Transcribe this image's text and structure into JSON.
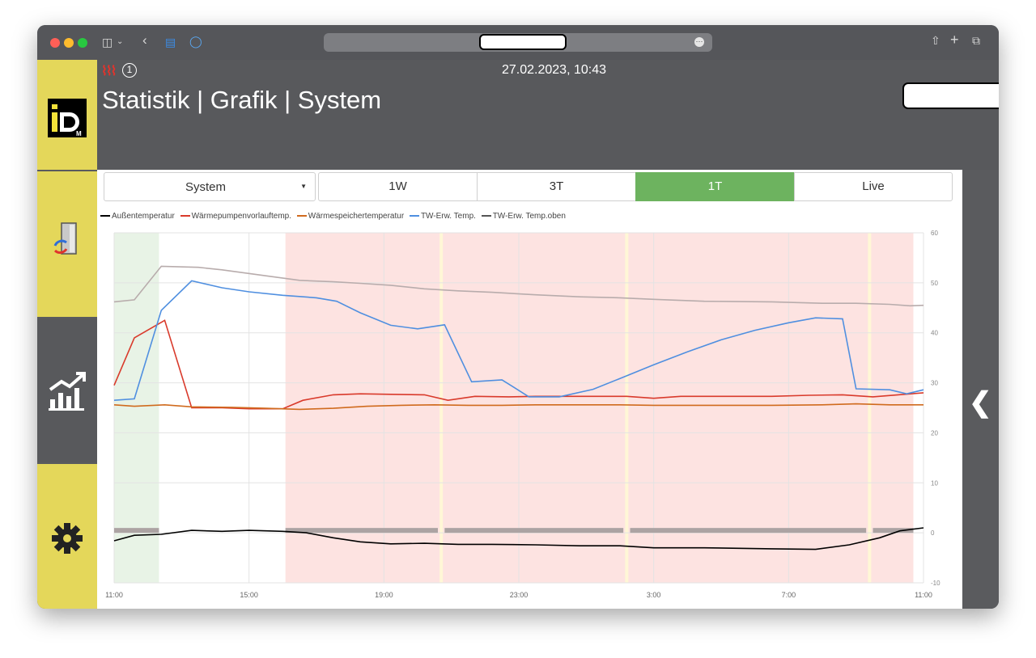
{
  "browser": {
    "traffic_lights": [
      "#fe5f57",
      "#febc2e",
      "#28c840"
    ],
    "icons": [
      "sidebar-toggle-icon",
      "chevron-down-icon",
      "back-icon",
      "reader-icon",
      "shield-icon",
      "share-icon",
      "new-tab-icon",
      "tabs-icon"
    ]
  },
  "header": {
    "radiator_icon": "heater-icon",
    "notification_count": "1",
    "datetime": "27.02.2023, 10:43",
    "title": "Statistik | Grafik | System"
  },
  "sidebar": {
    "items": [
      {
        "name": "logo",
        "label": "iD M"
      },
      {
        "name": "door-sync-icon"
      },
      {
        "name": "statistics-icon"
      },
      {
        "name": "settings-icon"
      }
    ]
  },
  "controls": {
    "system_select": "System",
    "tabs": [
      "1W",
      "3T",
      "1T",
      "Live"
    ],
    "active_tab": "1T"
  },
  "colors": {
    "active_tab": "#6db35f",
    "sidebar_yellow": "#e4d75a",
    "sidebar_dark": "#58595c"
  },
  "chart_data": {
    "type": "line",
    "legend": [
      {
        "name": "Außentemperatur",
        "color": "#000000"
      },
      {
        "name": "Wärmepumpenvorlauftemp.",
        "color": "#d93a2b"
      },
      {
        "name": "Wärmespeichertemperatur",
        "color": "#d06b1e"
      },
      {
        "name": "TW-Erw. Temp.",
        "color": "#4f8fe0"
      },
      {
        "name": "TW-Erw. Temp.oben",
        "color": "#b8acac"
      }
    ],
    "x_ticks": [
      "11:00",
      "15:00",
      "19:00",
      "23:00",
      "3:00",
      "7:00",
      "11:00"
    ],
    "x_tick_hours": [
      0,
      4,
      8,
      12,
      16,
      20,
      24
    ],
    "xlim": [
      0,
      24
    ],
    "y_ticks": [
      60,
      50,
      40,
      30,
      20,
      10,
      0,
      -10
    ],
    "ylim": [
      -10,
      60
    ],
    "grid": true,
    "bands": [
      {
        "start": 0,
        "end": 1.33,
        "color": "#e8f3e6"
      },
      {
        "start": 5.08,
        "end": 23.7,
        "color": "#fde3e1"
      }
    ],
    "band_gaps": [
      9.7,
      15.2,
      22.4
    ],
    "series": [
      {
        "name": "Außentemperatur",
        "color": "#000000",
        "points": [
          [
            0,
            -1.6
          ],
          [
            0.6,
            -0.5
          ],
          [
            1.4,
            -0.3
          ],
          [
            2.3,
            0.5
          ],
          [
            3.2,
            0.3
          ],
          [
            4.0,
            0.5
          ],
          [
            5.0,
            0.3
          ],
          [
            5.7,
            0
          ],
          [
            6.5,
            -1.0
          ],
          [
            7.3,
            -1.8
          ],
          [
            8.2,
            -2.2
          ],
          [
            9.2,
            -2.1
          ],
          [
            10.2,
            -2.3
          ],
          [
            11.2,
            -2.3
          ],
          [
            12.5,
            -2.4
          ],
          [
            13.8,
            -2.6
          ],
          [
            15.0,
            -2.6
          ],
          [
            16.0,
            -3.0
          ],
          [
            17.5,
            -3.0
          ],
          [
            19.5,
            -3.2
          ],
          [
            20.8,
            -3.3
          ],
          [
            21.8,
            -2.4
          ],
          [
            22.7,
            -1.0
          ],
          [
            23.3,
            0.4
          ],
          [
            24,
            1.0
          ]
        ]
      },
      {
        "name": "Wärmepumpenvorlauftemp.",
        "color": "#d93a2b",
        "points": [
          [
            0,
            29.5
          ],
          [
            0.6,
            39.0
          ],
          [
            1.5,
            42.5
          ],
          [
            2.3,
            25.0
          ],
          [
            3.2,
            25.0
          ],
          [
            4.0,
            24.8
          ],
          [
            5.0,
            24.8
          ],
          [
            5.6,
            26.5
          ],
          [
            6.5,
            27.6
          ],
          [
            7.3,
            27.8
          ],
          [
            8.2,
            27.7
          ],
          [
            9.2,
            27.6
          ],
          [
            9.9,
            26.5
          ],
          [
            10.7,
            27.3
          ],
          [
            11.7,
            27.2
          ],
          [
            12.5,
            27.3
          ],
          [
            13.5,
            27.3
          ],
          [
            15.2,
            27.3
          ],
          [
            16.0,
            26.9
          ],
          [
            16.8,
            27.3
          ],
          [
            19.5,
            27.3
          ],
          [
            20.6,
            27.5
          ],
          [
            21.6,
            27.6
          ],
          [
            22.5,
            27.2
          ],
          [
            24,
            28.0
          ]
        ]
      },
      {
        "name": "Wärmespeichertemperatur",
        "color": "#d06b1e",
        "points": [
          [
            0,
            25.6
          ],
          [
            0.6,
            25.3
          ],
          [
            1.5,
            25.6
          ],
          [
            2.3,
            25.2
          ],
          [
            3.5,
            25.1
          ],
          [
            4.5,
            24.9
          ],
          [
            5.5,
            24.7
          ],
          [
            6.5,
            24.9
          ],
          [
            7.5,
            25.3
          ],
          [
            8.5,
            25.5
          ],
          [
            9.5,
            25.6
          ],
          [
            10.5,
            25.5
          ],
          [
            11.5,
            25.5
          ],
          [
            12.5,
            25.6
          ],
          [
            13.5,
            25.6
          ],
          [
            15.0,
            25.6
          ],
          [
            16.0,
            25.5
          ],
          [
            17.5,
            25.5
          ],
          [
            19.5,
            25.5
          ],
          [
            21.0,
            25.6
          ],
          [
            22.0,
            25.8
          ],
          [
            23.0,
            25.6
          ],
          [
            24,
            25.6
          ]
        ]
      },
      {
        "name": "TW-Erw. Temp.",
        "color": "#4f8fe0",
        "points": [
          [
            0,
            26.5
          ],
          [
            0.6,
            26.8
          ],
          [
            1.4,
            44.5
          ],
          [
            2.3,
            50.4
          ],
          [
            3.2,
            49.0
          ],
          [
            4.0,
            48.2
          ],
          [
            5.0,
            47.5
          ],
          [
            6.0,
            47.0
          ],
          [
            6.6,
            46.3
          ],
          [
            7.3,
            44.0
          ],
          [
            8.2,
            41.5
          ],
          [
            9.0,
            40.8
          ],
          [
            9.8,
            41.6
          ],
          [
            10.6,
            30.2
          ],
          [
            11.5,
            30.6
          ],
          [
            12.3,
            27.2
          ],
          [
            13.2,
            27.2
          ],
          [
            14.2,
            28.7
          ],
          [
            15.2,
            31.4
          ],
          [
            16.0,
            33.6
          ],
          [
            17.0,
            36.2
          ],
          [
            18.0,
            38.6
          ],
          [
            19.0,
            40.5
          ],
          [
            20.0,
            42.0
          ],
          [
            20.8,
            43.0
          ],
          [
            21.6,
            42.8
          ],
          [
            22.0,
            28.8
          ],
          [
            23.0,
            28.6
          ],
          [
            23.5,
            27.8
          ],
          [
            24,
            28.6
          ]
        ]
      },
      {
        "name": "TW-Erw. Temp.oben",
        "color": "#b8acac",
        "points": [
          [
            0,
            46.2
          ],
          [
            0.6,
            46.6
          ],
          [
            1.4,
            53.3
          ],
          [
            2.5,
            53.1
          ],
          [
            3.2,
            52.6
          ],
          [
            4.5,
            51.4
          ],
          [
            5.5,
            50.5
          ],
          [
            6.5,
            50.2
          ],
          [
            7.3,
            49.9
          ],
          [
            8.2,
            49.5
          ],
          [
            9.2,
            48.8
          ],
          [
            10.2,
            48.4
          ],
          [
            11.2,
            48.1
          ],
          [
            12.5,
            47.6
          ],
          [
            13.8,
            47.2
          ],
          [
            15.0,
            47.0
          ],
          [
            16.0,
            46.7
          ],
          [
            17.5,
            46.3
          ],
          [
            19.5,
            46.2
          ],
          [
            21.0,
            45.9
          ],
          [
            22.0,
            45.9
          ],
          [
            23.0,
            45.7
          ],
          [
            23.6,
            45.4
          ],
          [
            24,
            45.5
          ]
        ]
      }
    ],
    "status_bar": {
      "value": 0,
      "segments": [
        [
          0,
          1.33
        ],
        [
          5.08,
          9.6
        ],
        [
          9.8,
          15.1
        ],
        [
          15.3,
          22.3
        ],
        [
          22.5,
          23.7
        ]
      ]
    }
  }
}
